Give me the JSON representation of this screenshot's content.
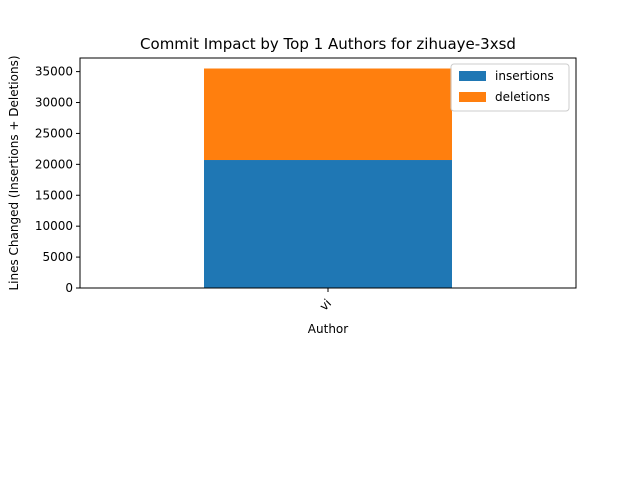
{
  "chart_data": {
    "type": "bar",
    "stacked": true,
    "title": "Commit Impact by Top 1 Authors for zihuaye-3xsd",
    "xlabel": "Author",
    "ylabel": "Lines Changed (Insertions + Deletions)",
    "categories": [
      "vi"
    ],
    "series": [
      {
        "name": "insertions",
        "values": [
          20700
        ],
        "color": "#1f77b4"
      },
      {
        "name": "deletions",
        "values": [
          14800
        ],
        "color": "#ff7f0e"
      }
    ],
    "ylim": [
      0,
      37200
    ],
    "yticks": [
      0,
      5000,
      10000,
      15000,
      20000,
      25000,
      30000,
      35000
    ],
    "grid": false,
    "legend_position": "upper right"
  }
}
